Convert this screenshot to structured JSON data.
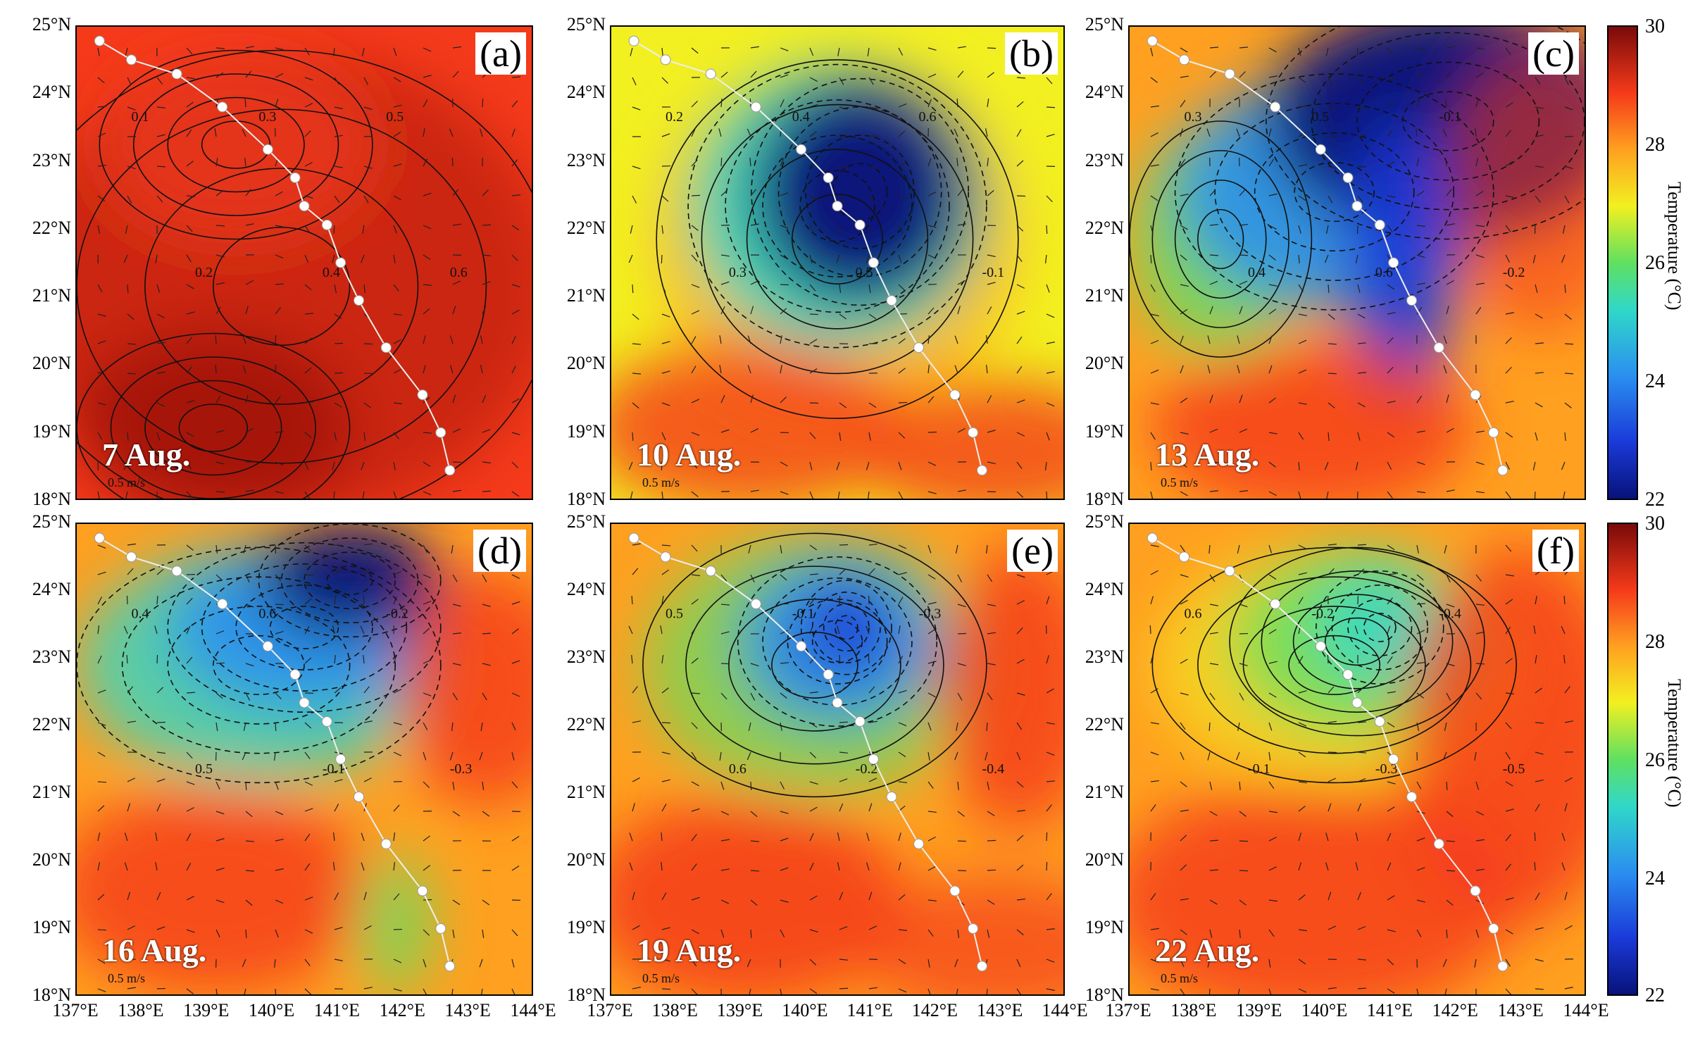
{
  "panels": [
    {
      "label": "(a)",
      "date": "7 Aug.",
      "scale": "0.5 m/s"
    },
    {
      "label": "(b)",
      "date": "10 Aug.",
      "scale": "0.5 m/s"
    },
    {
      "label": "(c)",
      "date": "13 Aug.",
      "scale": "0.5 m/s"
    },
    {
      "label": "(d)",
      "date": "16 Aug.",
      "scale": "0.5 m/s"
    },
    {
      "label": "(e)",
      "date": "19 Aug.",
      "scale": "0.5 m/s"
    },
    {
      "label": "(f)",
      "date": "22 Aug.",
      "scale": "0.5 m/s"
    }
  ],
  "y_ticks": [
    "25°N",
    "24°N",
    "23°N",
    "22°N",
    "21°N",
    "20°N",
    "19°N",
    "18°N"
  ],
  "x_ticks": [
    "137°E",
    "138°E",
    "139°E",
    "140°E",
    "141°E",
    "142°E",
    "143°E",
    "144°E"
  ],
  "colorbar": {
    "title": "Temperature (°C)",
    "ticks": [
      "30",
      "28",
      "26",
      "24",
      "22"
    ],
    "range": [
      22,
      30
    ],
    "colors": [
      "#08127a",
      "#1a3ad8",
      "#2a8ff0",
      "#30d8c8",
      "#60e060",
      "#f2f020",
      "#ffa020",
      "#f53a1a",
      "#7a0a0a"
    ]
  },
  "contour_labels": [
    "0.1",
    "0.2",
    "0.3",
    "0.4",
    "0.5",
    "0.6",
    "-0.1",
    "-0.2",
    "-0.3",
    "-0.4",
    "-0.5"
  ]
}
